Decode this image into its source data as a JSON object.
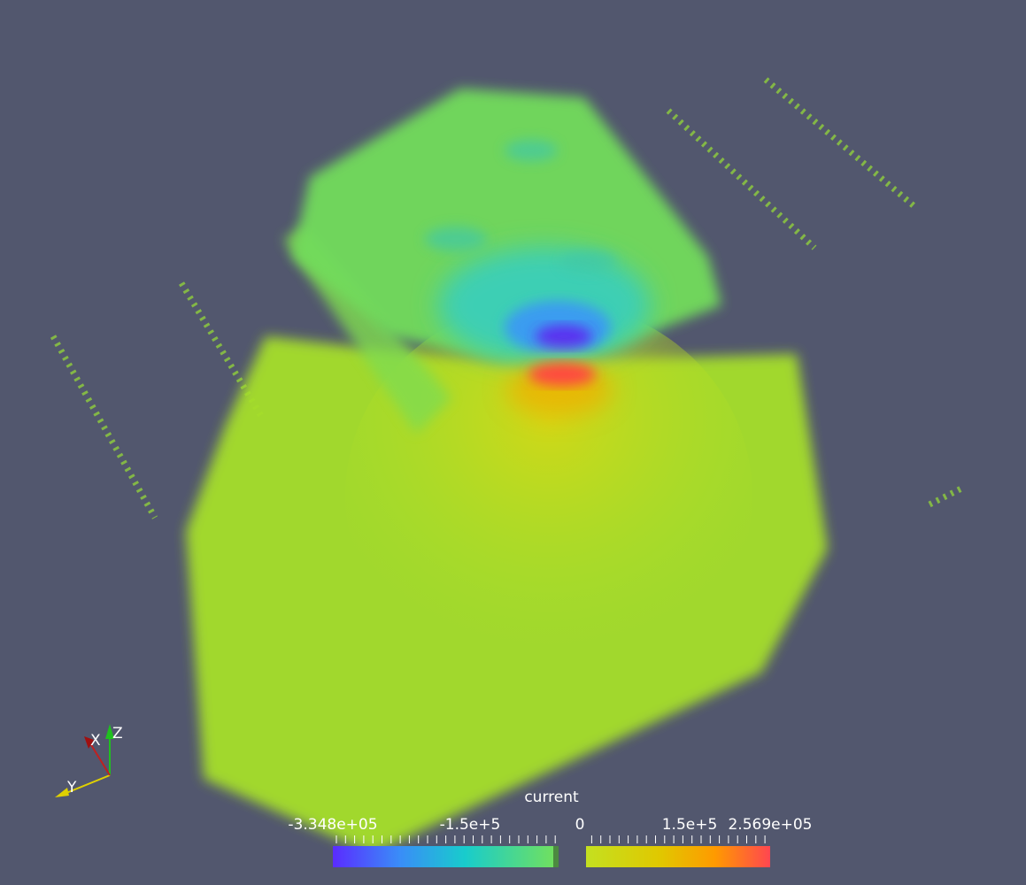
{
  "colorbar": {
    "title": "current",
    "labels": [
      "-3.348e+05",
      "-1.5e+5",
      "0",
      "1.5e+5",
      "2.569e+05"
    ]
  },
  "axes": {
    "x": "X",
    "y": "Y",
    "z": "Z"
  }
}
